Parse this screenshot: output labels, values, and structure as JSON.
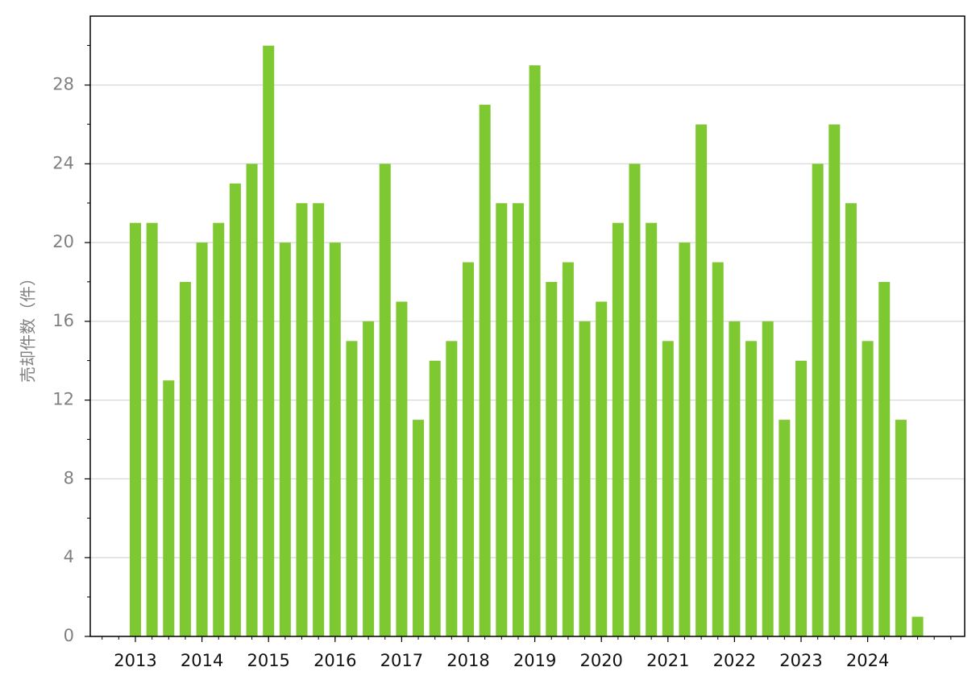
{
  "chart_data": {
    "type": "bar",
    "y_label": "売却件数（件）",
    "categories": [
      "2013",
      null,
      null,
      null,
      "2014",
      null,
      null,
      null,
      "2015",
      null,
      null,
      null,
      "2016",
      null,
      null,
      null,
      "2017",
      null,
      null,
      null,
      "2018",
      null,
      null,
      null,
      "2019",
      null,
      null,
      null,
      "2020",
      null,
      null,
      null,
      "2021",
      null,
      null,
      null,
      "2022",
      null,
      null,
      null,
      "2023",
      null,
      null,
      null,
      "2024",
      null,
      null,
      null
    ],
    "values": [
      21,
      21,
      13,
      18,
      20,
      21,
      23,
      24,
      30,
      20,
      22,
      22,
      20,
      15,
      16,
      24,
      17,
      11,
      14,
      15,
      19,
      27,
      22,
      22,
      29,
      18,
      19,
      16,
      17,
      21,
      24,
      21,
      15,
      20,
      26,
      19,
      16,
      15,
      16,
      11,
      14,
      24,
      26,
      22,
      15,
      18,
      11,
      1
    ],
    "color": "#7ec832",
    "ylim": [
      0,
      31.5
    ],
    "yticks": [
      0,
      4,
      8,
      12,
      16,
      20,
      24,
      28
    ],
    "grid": true
  }
}
